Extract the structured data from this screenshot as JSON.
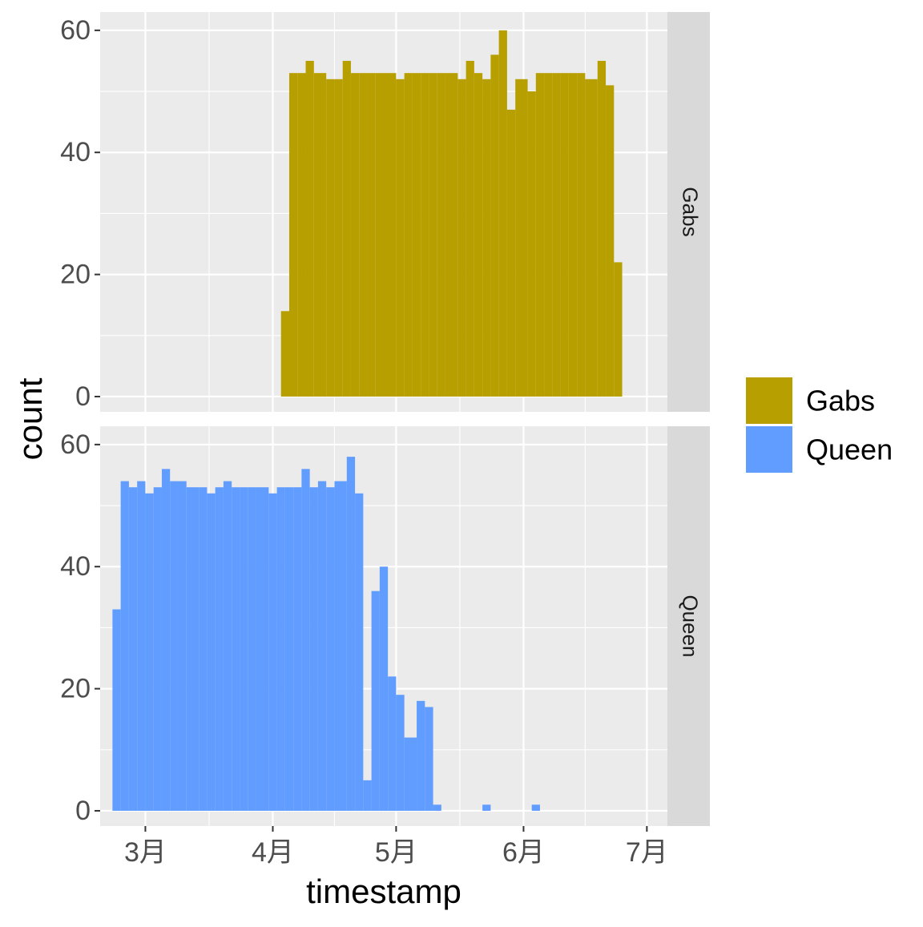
{
  "chart_data": {
    "type": "bar",
    "chart_kind": "faceted histogram",
    "xlabel": "timestamp",
    "ylabel": "count",
    "x_ticks": [
      "3月",
      "4月",
      "5月",
      "6月",
      "7月"
    ],
    "x_tick_dates": [
      "2020-03-01",
      "2020-04-01",
      "2020-05-01",
      "2020-06-01",
      "2020-07-01"
    ],
    "xlim": [
      "2020-02-19",
      "2020-07-06"
    ],
    "y_ticks": [
      0,
      20,
      40,
      60
    ],
    "ylim": [
      -2.5,
      63
    ],
    "grid": true,
    "legend_position": "right",
    "panel_background": "#ebebeb",
    "strip_background": "#d9d9d9",
    "bin_width_days": 2.13,
    "facets": [
      {
        "strip_label": "Gabs",
        "series_name": "Gabs",
        "color": "#b89f00",
        "bins": [
          {
            "start": "2020-04-03",
            "end": "2020-04-05",
            "count": 14
          },
          {
            "start": "2020-04-05",
            "end": "2020-04-07",
            "count": 53
          },
          {
            "start": "2020-04-07",
            "end": "2020-04-09",
            "count": 53
          },
          {
            "start": "2020-04-09",
            "end": "2020-04-11",
            "count": 55
          },
          {
            "start": "2020-04-11",
            "end": "2020-04-14",
            "count": 53
          },
          {
            "start": "2020-04-14",
            "end": "2020-04-16",
            "count": 52
          },
          {
            "start": "2020-04-16",
            "end": "2020-04-18",
            "count": 52
          },
          {
            "start": "2020-04-18",
            "end": "2020-04-20",
            "count": 55
          },
          {
            "start": "2020-04-20",
            "end": "2020-04-22",
            "count": 53
          },
          {
            "start": "2020-04-22",
            "end": "2020-04-24",
            "count": 53
          },
          {
            "start": "2020-04-24",
            "end": "2020-04-26",
            "count": 53
          },
          {
            "start": "2020-04-26",
            "end": "2020-04-28",
            "count": 53
          },
          {
            "start": "2020-04-28",
            "end": "2020-05-01",
            "count": 53
          },
          {
            "start": "2020-05-01",
            "end": "2020-05-03",
            "count": 52
          },
          {
            "start": "2020-05-03",
            "end": "2020-05-05",
            "count": 53
          },
          {
            "start": "2020-05-05",
            "end": "2020-05-07",
            "count": 53
          },
          {
            "start": "2020-05-07",
            "end": "2020-05-09",
            "count": 53
          },
          {
            "start": "2020-05-09",
            "end": "2020-05-11",
            "count": 53
          },
          {
            "start": "2020-05-11",
            "end": "2020-05-13",
            "count": 53
          },
          {
            "start": "2020-05-13",
            "end": "2020-05-16",
            "count": 53
          },
          {
            "start": "2020-05-16",
            "end": "2020-05-18",
            "count": 52
          },
          {
            "start": "2020-05-18",
            "end": "2020-05-20",
            "count": 55
          },
          {
            "start": "2020-05-20",
            "end": "2020-05-22",
            "count": 53
          },
          {
            "start": "2020-05-22",
            "end": "2020-05-24",
            "count": 52
          },
          {
            "start": "2020-05-24",
            "end": "2020-05-26",
            "count": 56
          },
          {
            "start": "2020-05-26",
            "end": "2020-05-28",
            "count": 60
          },
          {
            "start": "2020-05-28",
            "end": "2020-05-30",
            "count": 47
          },
          {
            "start": "2020-05-30",
            "end": "2020-06-02",
            "count": 52
          },
          {
            "start": "2020-06-02",
            "end": "2020-06-04",
            "count": 50
          },
          {
            "start": "2020-06-04",
            "end": "2020-06-06",
            "count": 53
          },
          {
            "start": "2020-06-06",
            "end": "2020-06-08",
            "count": 53
          },
          {
            "start": "2020-06-08",
            "end": "2020-06-10",
            "count": 53
          },
          {
            "start": "2020-06-10",
            "end": "2020-06-12",
            "count": 53
          },
          {
            "start": "2020-06-12",
            "end": "2020-06-14",
            "count": 53
          },
          {
            "start": "2020-06-14",
            "end": "2020-06-16",
            "count": 53
          },
          {
            "start": "2020-06-16",
            "end": "2020-06-19",
            "count": 52
          },
          {
            "start": "2020-06-19",
            "end": "2020-06-21",
            "count": 55
          },
          {
            "start": "2020-06-21",
            "end": "2020-06-23",
            "count": 51
          },
          {
            "start": "2020-06-23",
            "end": "2020-06-25",
            "count": 22
          }
        ]
      },
      {
        "strip_label": "Queen",
        "series_name": "Queen",
        "color": "#619cff",
        "bins": [
          {
            "start": "2020-02-22",
            "end": "2020-02-24",
            "count": 33
          },
          {
            "start": "2020-02-24",
            "end": "2020-02-26",
            "count": 54
          },
          {
            "start": "2020-02-26",
            "end": "2020-02-28",
            "count": 53
          },
          {
            "start": "2020-02-28",
            "end": "2020-03-01",
            "count": 54
          },
          {
            "start": "2020-03-01",
            "end": "2020-03-03",
            "count": 52
          },
          {
            "start": "2020-03-03",
            "end": "2020-03-05",
            "count": 53
          },
          {
            "start": "2020-03-05",
            "end": "2020-03-07",
            "count": 56
          },
          {
            "start": "2020-03-07",
            "end": "2020-03-09",
            "count": 54
          },
          {
            "start": "2020-03-09",
            "end": "2020-03-11",
            "count": 54
          },
          {
            "start": "2020-03-11",
            "end": "2020-03-14",
            "count": 53
          },
          {
            "start": "2020-03-14",
            "end": "2020-03-16",
            "count": 53
          },
          {
            "start": "2020-03-16",
            "end": "2020-03-18",
            "count": 52
          },
          {
            "start": "2020-03-18",
            "end": "2020-03-20",
            "count": 53
          },
          {
            "start": "2020-03-20",
            "end": "2020-03-22",
            "count": 54
          },
          {
            "start": "2020-03-22",
            "end": "2020-03-24",
            "count": 53
          },
          {
            "start": "2020-03-24",
            "end": "2020-03-26",
            "count": 53
          },
          {
            "start": "2020-03-26",
            "end": "2020-03-28",
            "count": 53
          },
          {
            "start": "2020-03-28",
            "end": "2020-03-31",
            "count": 53
          },
          {
            "start": "2020-03-31",
            "end": "2020-04-02",
            "count": 52
          },
          {
            "start": "2020-04-02",
            "end": "2020-04-04",
            "count": 53
          },
          {
            "start": "2020-04-04",
            "end": "2020-04-06",
            "count": 53
          },
          {
            "start": "2020-04-06",
            "end": "2020-04-08",
            "count": 53
          },
          {
            "start": "2020-04-08",
            "end": "2020-04-10",
            "count": 56
          },
          {
            "start": "2020-04-10",
            "end": "2020-04-12",
            "count": 53
          },
          {
            "start": "2020-04-12",
            "end": "2020-04-14",
            "count": 54
          },
          {
            "start": "2020-04-14",
            "end": "2020-04-16",
            "count": 53
          },
          {
            "start": "2020-04-16",
            "end": "2020-04-19",
            "count": 54
          },
          {
            "start": "2020-04-19",
            "end": "2020-04-21",
            "count": 58
          },
          {
            "start": "2020-04-21",
            "end": "2020-04-23",
            "count": 52
          },
          {
            "start": "2020-04-23",
            "end": "2020-04-25",
            "count": 5
          },
          {
            "start": "2020-04-25",
            "end": "2020-04-27",
            "count": 36
          },
          {
            "start": "2020-04-27",
            "end": "2020-04-29",
            "count": 40
          },
          {
            "start": "2020-04-29",
            "end": "2020-05-01",
            "count": 22
          },
          {
            "start": "2020-05-01",
            "end": "2020-05-03",
            "count": 19
          },
          {
            "start": "2020-05-03",
            "end": "2020-05-06",
            "count": 12
          },
          {
            "start": "2020-05-06",
            "end": "2020-05-08",
            "count": 18
          },
          {
            "start": "2020-05-08",
            "end": "2020-05-10",
            "count": 17
          },
          {
            "start": "2020-05-10",
            "end": "2020-05-12",
            "count": 1
          },
          {
            "start": "2020-05-22",
            "end": "2020-05-24",
            "count": 1
          },
          {
            "start": "2020-06-03",
            "end": "2020-06-05",
            "count": 1
          }
        ]
      }
    ]
  },
  "legend": {
    "items": [
      {
        "label": "Gabs",
        "color": "#b89f00"
      },
      {
        "label": "Queen",
        "color": "#619cff"
      }
    ]
  }
}
